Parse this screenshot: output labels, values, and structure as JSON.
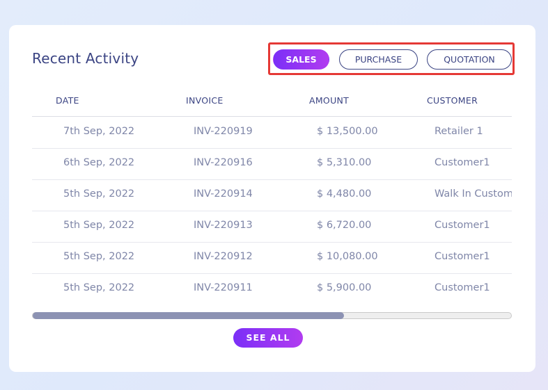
{
  "card": {
    "title": "Recent Activity",
    "tabs": [
      {
        "label": "SALES",
        "active": true
      },
      {
        "label": "PURCHASE",
        "active": false
      },
      {
        "label": "QUOTATION",
        "active": false
      }
    ]
  },
  "table": {
    "headers": [
      "DATE",
      "INVOICE",
      "AMOUNT",
      "CUSTOMER"
    ],
    "rows": [
      [
        "7th Sep, 2022",
        "INV-220919",
        "$ 13,500.00",
        "Retailer 1"
      ],
      [
        "6th Sep, 2022",
        "INV-220916",
        "$ 5,310.00",
        "Customer1"
      ],
      [
        "5th Sep, 2022",
        "INV-220914",
        "$ 4,480.00",
        "Walk In Customer"
      ],
      [
        "5th Sep, 2022",
        "INV-220913",
        "$ 6,720.00",
        "Customer1"
      ],
      [
        "5th Sep, 2022",
        "INV-220912",
        "$ 10,080.00",
        "Customer1"
      ],
      [
        "5th Sep, 2022",
        "INV-220911",
        "$ 5,900.00",
        "Customer1"
      ]
    ]
  },
  "scroll": {
    "position_fraction": 0.65
  },
  "see_all_label": "SEE ALL",
  "colors": {
    "accent_gradient_start": "#7b2ff7",
    "accent_gradient_end": "#b13cf0",
    "title": "#3b4483",
    "cell_text": "#7f86a8",
    "highlight_frame": "#e53935"
  }
}
